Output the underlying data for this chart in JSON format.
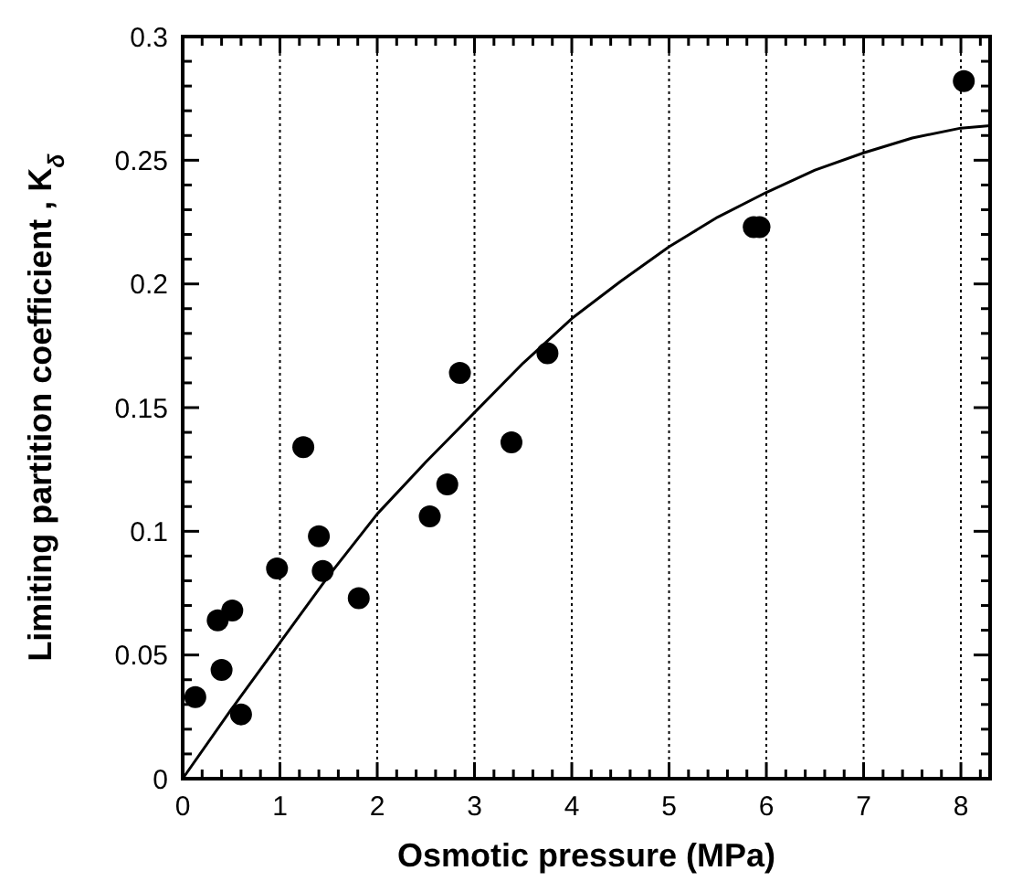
{
  "chart_data": {
    "type": "scatter",
    "xlabel": "Osmotic pressure  (MPa)",
    "ylabel": "Limiting partition coefficient , K$_{δ}$",
    "xlim": [
      0,
      8.3
    ],
    "ylim": [
      0,
      0.3
    ],
    "xticks": [
      0,
      {
        "value": 0.2,
        "label": null
      },
      {
        "value": 0.4,
        "label": null
      },
      {
        "value": 0.6,
        "label": null
      },
      {
        "value": 0.8,
        "label": null
      },
      1,
      {
        "value": 1.2,
        "label": null
      },
      {
        "value": 1.4,
        "label": null
      },
      {
        "value": 1.6,
        "label": null
      },
      {
        "value": 1.8,
        "label": null
      },
      2,
      {
        "value": 2.2,
        "label": null
      },
      {
        "value": 2.4,
        "label": null
      },
      {
        "value": 2.6,
        "label": null
      },
      {
        "value": 2.8,
        "label": null
      },
      3,
      {
        "value": 3.2,
        "label": null
      },
      {
        "value": 3.4,
        "label": null
      },
      {
        "value": 3.6,
        "label": null
      },
      {
        "value": 3.8,
        "label": null
      },
      4,
      {
        "value": 4.2,
        "label": null
      },
      {
        "value": 4.4,
        "label": null
      },
      {
        "value": 4.6,
        "label": null
      },
      {
        "value": 4.8,
        "label": null
      },
      5,
      {
        "value": 5.2,
        "label": null
      },
      {
        "value": 5.4,
        "label": null
      },
      {
        "value": 5.6,
        "label": null
      },
      {
        "value": 5.8,
        "label": null
      },
      6,
      {
        "value": 6.2,
        "label": null
      },
      {
        "value": 6.4,
        "label": null
      },
      {
        "value": 6.6,
        "label": null
      },
      {
        "value": 6.8,
        "label": null
      },
      7,
      {
        "value": 7.2,
        "label": null
      },
      {
        "value": 7.4,
        "label": null
      },
      {
        "value": 7.6,
        "label": null
      },
      {
        "value": 7.8,
        "label": null
      },
      8,
      {
        "value": 8.2,
        "label": null
      }
    ],
    "yticks": [
      0,
      {
        "value": 0.01,
        "label": null
      },
      {
        "value": 0.02,
        "label": null
      },
      {
        "value": 0.03,
        "label": null
      },
      {
        "value": 0.04,
        "label": null
      },
      0.05,
      {
        "value": 0.06,
        "label": null
      },
      {
        "value": 0.07,
        "label": null
      },
      {
        "value": 0.08,
        "label": null
      },
      {
        "value": 0.09,
        "label": null
      },
      0.1,
      {
        "value": 0.11,
        "label": null
      },
      {
        "value": 0.12,
        "label": null
      },
      {
        "value": 0.13,
        "label": null
      },
      {
        "value": 0.14,
        "label": null
      },
      0.15,
      {
        "value": 0.16,
        "label": null
      },
      {
        "value": 0.17,
        "label": null
      },
      {
        "value": 0.18,
        "label": null
      },
      {
        "value": 0.19,
        "label": null
      },
      0.2,
      {
        "value": 0.21,
        "label": null
      },
      {
        "value": 0.22,
        "label": null
      },
      {
        "value": 0.23,
        "label": null
      },
      {
        "value": 0.24,
        "label": null
      },
      0.25,
      {
        "value": 0.26,
        "label": null
      },
      {
        "value": 0.27,
        "label": null
      },
      {
        "value": 0.28,
        "label": null
      },
      {
        "value": 0.29,
        "label": null
      },
      0.3
    ],
    "grid": "x",
    "marker": "circle",
    "series": [
      {
        "color": "#000000",
        "x": [
          0.13,
          0.4,
          0.36,
          0.51,
          0.6,
          0.97,
          1.24,
          1.4,
          1.44,
          1.81,
          2.54,
          2.72,
          2.85,
          3.38,
          3.75,
          5.87,
          5.93,
          8.03
        ],
        "values": [
          0.033,
          0.044,
          0.064,
          0.068,
          0.026,
          0.085,
          0.134,
          0.098,
          0.084,
          0.073,
          0.106,
          0.119,
          0.164,
          0.136,
          0.172,
          0.223,
          0.223,
          0.282
        ]
      },
      {
        "type": "line",
        "color": "#000000",
        "marker": "none",
        "line_style": "solid",
        "x": [
          0,
          0.5,
          1,
          1.5,
          2,
          2.5,
          3,
          3.5,
          4,
          4.5,
          5,
          5.5,
          6,
          6.5,
          7,
          7.5,
          8,
          8.3
        ],
        "values": [
          0,
          0.028,
          0.055,
          0.082,
          0.107,
          0.128,
          0.148,
          0.168,
          0.186,
          0.201,
          0.215,
          0.227,
          0.237,
          0.246,
          0.253,
          0.259,
          0.263,
          0.264
        ]
      }
    ]
  }
}
